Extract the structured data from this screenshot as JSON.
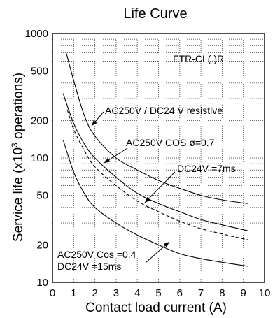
{
  "chart_data": {
    "type": "line",
    "title": "Life Curve",
    "xlabel": "Contact load current (A)",
    "ylabel_prefix": "Service life (x10",
    "ylabel_exp": "3",
    "ylabel_suffix": " operations)",
    "model_label": "FTR-CL( )R",
    "xlim": [
      0,
      10
    ],
    "ylim": [
      10,
      1000
    ],
    "y_scale": "log",
    "grid": true,
    "x_ticks": [
      0,
      1,
      2,
      3,
      4,
      5,
      6,
      7,
      8,
      9,
      10
    ],
    "x_tick_labels": [
      "0",
      "1",
      "2",
      "3",
      "4",
      "5",
      "6",
      "7",
      "8",
      "9",
      "10"
    ],
    "y_ticks": [
      10,
      20,
      50,
      100,
      200,
      500,
      1000
    ],
    "y_tick_labels": [
      "10",
      "20",
      "50",
      "100",
      "200",
      "500",
      "1000"
    ],
    "y_minor_grid": [
      30,
      40,
      60,
      70,
      80,
      90,
      300,
      400,
      600,
      700,
      800,
      900
    ],
    "series": [
      {
        "name": "AC250V / DC24 V resistive",
        "style": "solid",
        "x": [
          0.65,
          1.0,
          1.5,
          2.0,
          3.0,
          4.0,
          5.0,
          6.0,
          7.0,
          8.0,
          9.2
        ],
        "y": [
          700,
          420,
          220,
          150,
          100,
          80,
          66,
          57,
          50,
          46,
          43
        ]
      },
      {
        "name": "AC250V COS ø=0.7",
        "style": "solid",
        "x": [
          0.5,
          1.0,
          1.5,
          2.0,
          3.0,
          4.0,
          5.0,
          6.0,
          7.0,
          8.0,
          9.2
        ],
        "y": [
          330,
          190,
          130,
          100,
          70,
          52,
          43,
          37,
          32,
          29,
          26
        ]
      },
      {
        "name": "DC24V =7ms",
        "style": "dashed",
        "x": [
          0.7,
          1.0,
          1.5,
          2.0,
          3.0,
          4.0,
          5.0,
          6.0,
          7.0,
          8.0,
          9.2
        ],
        "y": [
          245,
          170,
          115,
          85,
          60,
          45,
          37,
          31,
          27,
          24.5,
          22
        ]
      },
      {
        "name": "AC250V Cos =0.4 / DC24V =15ms",
        "style": "solid",
        "x": [
          0.5,
          1.0,
          1.5,
          2.0,
          3.0,
          4.0,
          5.0,
          6.0,
          7.0,
          8.0,
          9.2
        ],
        "y": [
          140,
          77,
          52,
          40,
          30,
          24,
          20,
          17,
          15.5,
          14.5,
          13.5
        ]
      }
    ],
    "annotations": [
      {
        "lines": [
          "AC250V / DC24 V resistive"
        ]
      },
      {
        "lines": [
          "AC250V COS ø=0.7"
        ]
      },
      {
        "lines": [
          "DC24V  =7ms"
        ]
      },
      {
        "lines": [
          "AC250V Cos =0.4",
          "DC24V  =15ms"
        ]
      }
    ]
  }
}
